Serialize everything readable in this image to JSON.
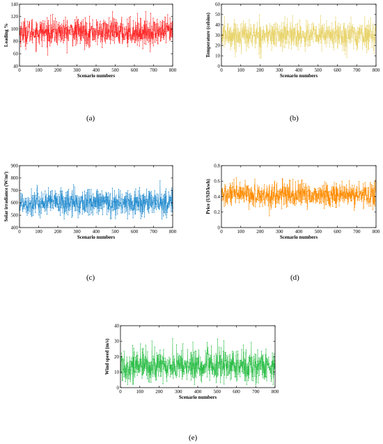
{
  "chart_data": [
    {
      "id": "a",
      "type": "line",
      "caption": "(a)",
      "xlabel": "Scenario numbers",
      "ylabel": "Loading %",
      "xlim": [
        0,
        800
      ],
      "ylim": [
        40,
        140
      ],
      "xticks": [
        0,
        100,
        200,
        300,
        400,
        500,
        600,
        700,
        800
      ],
      "yticks": [
        40,
        60,
        80,
        100,
        120,
        140
      ],
      "color": "#ff2a2a",
      "grid": false,
      "series": [
        {
          "mean": 95,
          "spread": 11,
          "min": 58,
          "max": 128,
          "n": 800
        }
      ]
    },
    {
      "id": "b",
      "type": "line",
      "caption": "(b)",
      "xlabel": "Scenario numbers",
      "ylabel": "Temperature (celsius)",
      "xlim": [
        0,
        800
      ],
      "ylim": [
        0,
        60
      ],
      "xticks": [
        0,
        100,
        200,
        300,
        400,
        500,
        600,
        700,
        800
      ],
      "yticks": [
        0,
        10,
        20,
        30,
        40,
        50,
        60
      ],
      "color": "#e8d36a",
      "grid": false,
      "series": [
        {
          "mean": 30,
          "spread": 7,
          "min": 8,
          "max": 52,
          "n": 800
        }
      ]
    },
    {
      "id": "c",
      "type": "line",
      "caption": "(c)",
      "xlabel": "Scenario numbers",
      "ylabel": "Solar irradiance (W/m²)",
      "xlim": [
        0,
        800
      ],
      "ylim": [
        400,
        900
      ],
      "xticks": [
        0,
        100,
        200,
        300,
        400,
        500,
        600,
        700,
        800
      ],
      "yticks": [
        400,
        500,
        600,
        700,
        800,
        900
      ],
      "color": "#2a8fd0",
      "grid": false,
      "series": [
        {
          "mean": 600,
          "spread": 55,
          "min": 470,
          "max": 800,
          "n": 800
        }
      ]
    },
    {
      "id": "d",
      "type": "line",
      "caption": "(d)",
      "xlabel": "Scenario numbers",
      "ylabel": "Price (USD/kwh)",
      "xlim": [
        0,
        800
      ],
      "ylim": [
        0,
        0.8
      ],
      "xticks": [
        0,
        100,
        200,
        300,
        400,
        500,
        600,
        700,
        800
      ],
      "yticks": [
        0,
        0.2,
        0.4,
        0.6,
        0.8
      ],
      "color": "#ff8c00",
      "grid": false,
      "series": [
        {
          "mean": 0.42,
          "spread": 0.08,
          "min": 0.05,
          "max": 0.68,
          "n": 800
        }
      ]
    },
    {
      "id": "e",
      "type": "line",
      "caption": "(e)",
      "xlabel": "Scenario numbers",
      "ylabel": "Wind speed (m/s)",
      "xlim": [
        0,
        800
      ],
      "ylim": [
        0,
        40
      ],
      "xticks": [
        0,
        100,
        200,
        300,
        400,
        500,
        600,
        700,
        800
      ],
      "yticks": [
        0,
        10,
        20,
        30,
        40
      ],
      "color": "#2fbf4a",
      "grid": false,
      "series": [
        {
          "mean": 14,
          "spread": 5.5,
          "min": 2,
          "max": 35,
          "n": 800
        }
      ]
    }
  ]
}
